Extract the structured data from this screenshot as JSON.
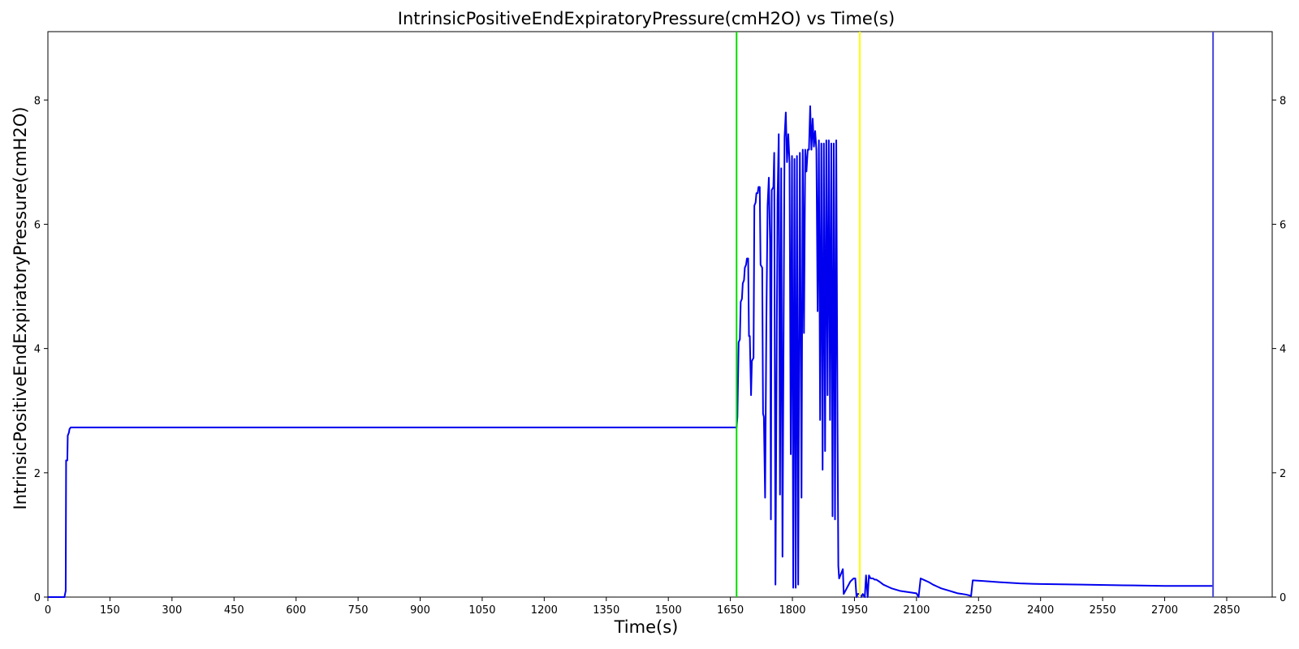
{
  "chart_data": {
    "type": "line",
    "title": "IntrinsicPositiveEndExpiratoryPressure(cmH2O) vs Time(s)",
    "xlabel": "Time(s)",
    "ylabel": "IntrinsicPositiveEndExpiratoryPressure(cmH2O)",
    "xlim": [
      0,
      2960
    ],
    "ylim": [
      0,
      9.1
    ],
    "x_ticks": [
      "0",
      "150",
      "300",
      "450",
      "600",
      "750",
      "900",
      "1050",
      "1200",
      "1350",
      "1500",
      "1650",
      "1800",
      "1950",
      "2100",
      "2250",
      "2400",
      "2550",
      "2700",
      "2850"
    ],
    "y_ticks_left": [
      "0",
      "2",
      "4",
      "6",
      "8"
    ],
    "y_ticks_right": [
      "0",
      "2",
      "4",
      "6",
      "8"
    ],
    "grid": false,
    "line_color": "#0000ee",
    "vertical_markers": [
      {
        "x": 1665,
        "color": "#00dd00"
      },
      {
        "x": 1963,
        "color": "#ffff00"
      },
      {
        "x": 2817,
        "color": "#4444dd"
      }
    ],
    "series": [
      {
        "points": [
          [
            0,
            0
          ],
          [
            40,
            0
          ],
          [
            43,
            0.1
          ],
          [
            44,
            2.2
          ],
          [
            47,
            2.2
          ],
          [
            48,
            2.6
          ],
          [
            51,
            2.65
          ],
          [
            52,
            2.7
          ],
          [
            55,
            2.73
          ],
          [
            100,
            2.73
          ],
          [
            1500,
            2.73
          ],
          [
            1665,
            2.73
          ],
          [
            1667,
            2.9
          ],
          [
            1670,
            4.1
          ],
          [
            1673,
            4.15
          ],
          [
            1675,
            4.75
          ],
          [
            1678,
            4.8
          ],
          [
            1680,
            5.05
          ],
          [
            1683,
            5.1
          ],
          [
            1685,
            5.3
          ],
          [
            1688,
            5.35
          ],
          [
            1690,
            5.45
          ],
          [
            1693,
            5.45
          ],
          [
            1695,
            4.2
          ],
          [
            1697,
            4.2
          ],
          [
            1700,
            3.25
          ],
          [
            1702,
            3.8
          ],
          [
            1706,
            3.85
          ],
          [
            1708,
            6.3
          ],
          [
            1711,
            6.35
          ],
          [
            1713,
            6.5
          ],
          [
            1716,
            6.5
          ],
          [
            1718,
            6.6
          ],
          [
            1721,
            6.6
          ],
          [
            1723,
            5.35
          ],
          [
            1727,
            5.3
          ],
          [
            1729,
            2.95
          ],
          [
            1731,
            2.9
          ],
          [
            1734,
            1.6
          ],
          [
            1737,
            4.4
          ],
          [
            1740,
            6.3
          ],
          [
            1743,
            6.75
          ],
          [
            1746,
            5.7
          ],
          [
            1748,
            1.25
          ],
          [
            1750,
            6.55
          ],
          [
            1754,
            6.6
          ],
          [
            1756,
            7.15
          ],
          [
            1759,
            0.2
          ],
          [
            1764,
            6.4
          ],
          [
            1767,
            7.45
          ],
          [
            1770,
            1.65
          ],
          [
            1773,
            6.9
          ],
          [
            1776,
            0.65
          ],
          [
            1781,
            7.4
          ],
          [
            1784,
            7.8
          ],
          [
            1787,
            7.0
          ],
          [
            1790,
            7.45
          ],
          [
            1793,
            7.0
          ],
          [
            1796,
            2.3
          ],
          [
            1799,
            7.1
          ],
          [
            1802,
            0.15
          ],
          [
            1805,
            7.05
          ],
          [
            1808,
            0.15
          ],
          [
            1811,
            7.1
          ],
          [
            1814,
            0.2
          ],
          [
            1818,
            7.15
          ],
          [
            1822,
            1.6
          ],
          [
            1825,
            7.2
          ],
          [
            1828,
            4.25
          ],
          [
            1831,
            7.2
          ],
          [
            1834,
            6.85
          ],
          [
            1837,
            7.2
          ],
          [
            1840,
            7.2
          ],
          [
            1843,
            7.9
          ],
          [
            1846,
            7.2
          ],
          [
            1849,
            7.7
          ],
          [
            1852,
            7.25
          ],
          [
            1855,
            7.5
          ],
          [
            1858,
            7.2
          ],
          [
            1861,
            4.6
          ],
          [
            1864,
            7.35
          ],
          [
            1867,
            2.85
          ],
          [
            1870,
            7.3
          ],
          [
            1873,
            2.05
          ],
          [
            1876,
            7.3
          ],
          [
            1879,
            2.35
          ],
          [
            1882,
            7.35
          ],
          [
            1885,
            3.25
          ],
          [
            1888,
            7.35
          ],
          [
            1891,
            2.85
          ],
          [
            1894,
            7.3
          ],
          [
            1897,
            1.3
          ],
          [
            1900,
            7.3
          ],
          [
            1903,
            1.25
          ],
          [
            1906,
            7.35
          ],
          [
            1909,
            2.8
          ],
          [
            1911,
            0.5
          ],
          [
            1913,
            0.3
          ],
          [
            1916,
            0.35
          ],
          [
            1919,
            0.4
          ],
          [
            1922,
            0.45
          ],
          [
            1924,
            0.05
          ],
          [
            1932,
            0.15
          ],
          [
            1940,
            0.25
          ],
          [
            1948,
            0.3
          ],
          [
            1952,
            0.3
          ],
          [
            1955,
            0.0
          ],
          [
            1958,
            0.05
          ],
          [
            1962,
            0.05
          ],
          [
            1966,
            0.0
          ],
          [
            1970,
            0.05
          ],
          [
            1975,
            0.0
          ],
          [
            1978,
            0.35
          ],
          [
            1982,
            0.0
          ],
          [
            1985,
            0.35
          ],
          [
            1989,
            0.3
          ],
          [
            1995,
            0.3
          ],
          [
            1999,
            0.28
          ],
          [
            2003,
            0.28
          ],
          [
            2010,
            0.25
          ],
          [
            2020,
            0.2
          ],
          [
            2030,
            0.17
          ],
          [
            2040,
            0.14
          ],
          [
            2050,
            0.12
          ],
          [
            2060,
            0.1
          ],
          [
            2070,
            0.09
          ],
          [
            2080,
            0.08
          ],
          [
            2090,
            0.07
          ],
          [
            2100,
            0.06
          ],
          [
            2105,
            0.0
          ],
          [
            2110,
            0.3
          ],
          [
            2120,
            0.27
          ],
          [
            2130,
            0.24
          ],
          [
            2140,
            0.2
          ],
          [
            2150,
            0.17
          ],
          [
            2160,
            0.14
          ],
          [
            2170,
            0.12
          ],
          [
            2180,
            0.1
          ],
          [
            2190,
            0.08
          ],
          [
            2200,
            0.06
          ],
          [
            2210,
            0.05
          ],
          [
            2220,
            0.04
          ],
          [
            2232,
            0.02
          ],
          [
            2236,
            0.27
          ],
          [
            2260,
            0.26
          ],
          [
            2300,
            0.24
          ],
          [
            2350,
            0.22
          ],
          [
            2400,
            0.21
          ],
          [
            2500,
            0.2
          ],
          [
            2600,
            0.19
          ],
          [
            2700,
            0.18
          ],
          [
            2817,
            0.18
          ]
        ]
      }
    ]
  }
}
